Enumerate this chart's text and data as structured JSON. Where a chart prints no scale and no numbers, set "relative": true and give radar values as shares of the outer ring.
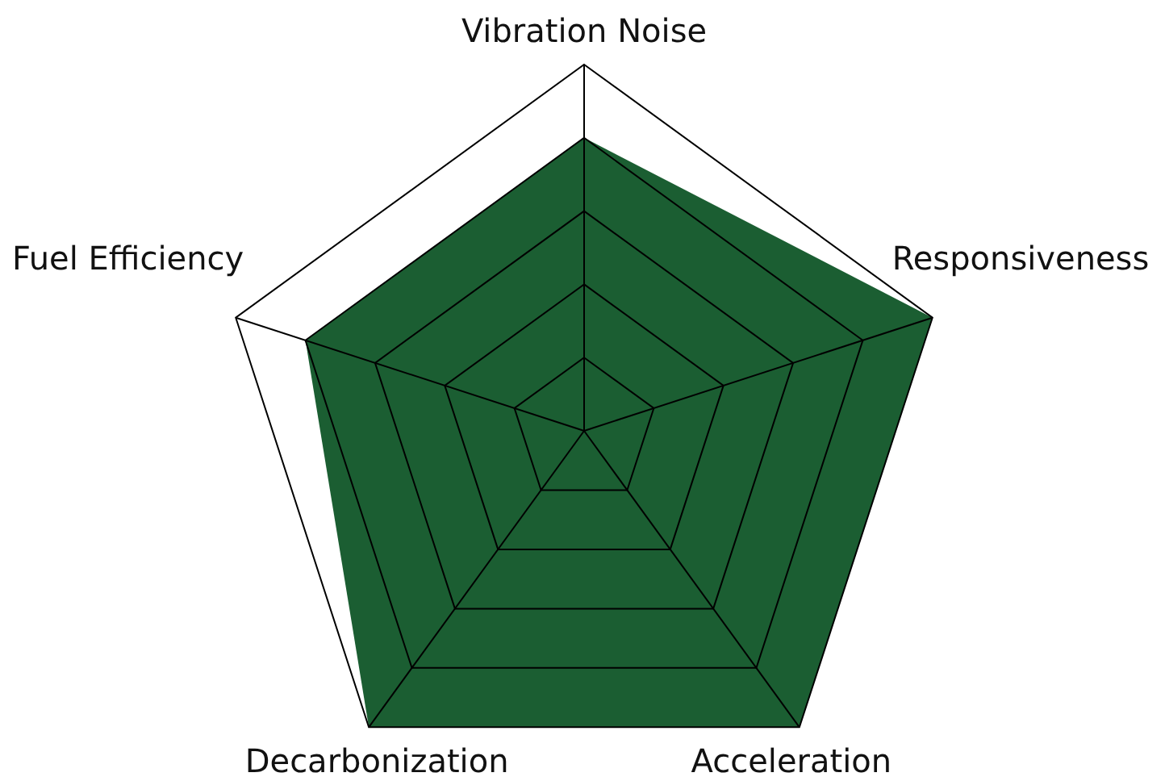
{
  "chart_data": {
    "type": "radar",
    "relative": true,
    "grid": true,
    "categories": [
      "Vibration Noise",
      "Responsiveness",
      "Acceleration",
      "Decarbonization",
      "Fuel Efficiency"
    ],
    "series": [
      {
        "color": "#1b5e32",
        "values": [
          0.8,
          1,
          1,
          1,
          0.8
        ]
      }
    ]
  }
}
